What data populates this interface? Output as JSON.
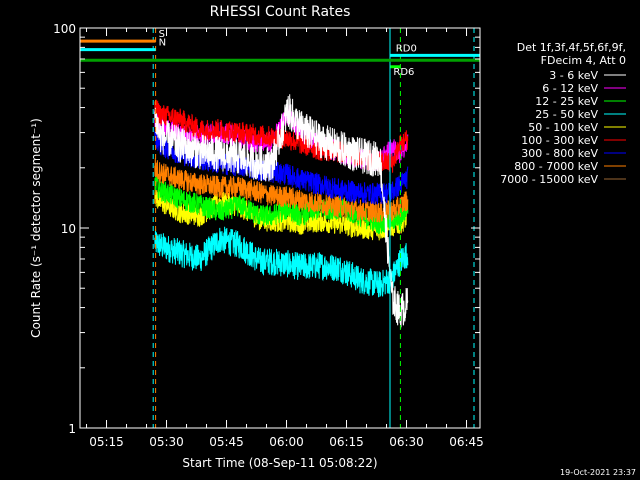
{
  "chart_data": {
    "type": "line",
    "title": "RHESSI Count Rates",
    "xlabel": "Start Time (08-Sep-11 05:08:22)",
    "ylabel": "Count Rate (s⁻¹ detector segment⁻¹)",
    "yscale": "log",
    "ylim": [
      1,
      100
    ],
    "xlim_minutes": [
      0,
      100
    ],
    "x_tick_labels": [
      "05:15",
      "05:30",
      "05:45",
      "06:00",
      "06:15",
      "06:30",
      "06:45"
    ],
    "x_tick_minutes": [
      6.63,
      21.63,
      36.63,
      51.63,
      66.63,
      81.63,
      96.63
    ],
    "y_tick_labels": [
      "1",
      "10",
      "100"
    ],
    "y_tick_values": [
      1,
      10,
      100
    ],
    "grid": false,
    "legend_position": "right",
    "legend_header": [
      "Det 1f,3f,4f,5f,6f,9f,",
      "FDecim 4, Att 0"
    ],
    "series": [
      {
        "name": "3 - 6 keV",
        "color": "#ffffff",
        "x": [
          18.7,
          20,
          25,
          30,
          35,
          40,
          45,
          48,
          52,
          55,
          60,
          65,
          70,
          75,
          78,
          80,
          82
        ],
        "y": [
          36,
          29,
          26,
          24,
          23.5,
          22.5,
          21,
          21,
          39,
          32,
          27.5,
          25,
          23,
          22,
          4.5,
          3.8,
          4.2
        ]
      },
      {
        "name": "6 - 12 keV",
        "color": "#ff00ff",
        "x": [
          18.7,
          20,
          25,
          30,
          35,
          40,
          45,
          48,
          52,
          55,
          60,
          65,
          70,
          75,
          78,
          80,
          82
        ],
        "y": [
          36,
          33,
          29,
          29,
          30,
          28.5,
          26,
          27,
          37,
          30,
          26,
          24,
          22,
          21.5,
          25,
          24,
          26
        ]
      },
      {
        "name": "12 - 25 keV",
        "color": "#00ff00",
        "x": [
          18.7,
          20,
          25,
          30,
          35,
          40,
          45,
          48,
          52,
          55,
          60,
          65,
          70,
          75,
          78,
          80,
          82
        ],
        "y": [
          17,
          15.5,
          14,
          13,
          12,
          13,
          11.5,
          11.5,
          12.5,
          11.5,
          12.5,
          12.5,
          11.5,
          10.5,
          11,
          11,
          13
        ]
      },
      {
        "name": "25 - 50 keV",
        "color": "#00ffff",
        "x": [
          18.7,
          20,
          25,
          30,
          35,
          40,
          45,
          48,
          52,
          55,
          60,
          65,
          70,
          75,
          78,
          80,
          82
        ],
        "y": [
          8.5,
          8.2,
          7.5,
          7,
          8.8,
          8.2,
          6.8,
          6.8,
          6.6,
          6.4,
          6.5,
          6.3,
          5.5,
          5.2,
          5.6,
          6.8,
          7.5
        ]
      },
      {
        "name": "50 - 100 keV",
        "color": "#ffff00",
        "x": [
          18.7,
          20,
          25,
          30,
          35,
          40,
          45,
          48,
          52,
          55,
          60,
          65,
          70,
          75,
          78,
          80,
          82
        ],
        "y": [
          14.5,
          13.5,
          12,
          11.5,
          13.5,
          12.8,
          11,
          10.8,
          10.8,
          10.5,
          10.8,
          10.5,
          10,
          9.8,
          10.2,
          10.5,
          11.5
        ]
      },
      {
        "name": "100 - 300 keV",
        "color": "#ff0000",
        "x": [
          18.7,
          20,
          25,
          30,
          35,
          40,
          45,
          48,
          52,
          55,
          60,
          65,
          70,
          75,
          78,
          80,
          82
        ],
        "y": [
          40,
          37,
          35,
          31,
          31,
          30,
          29,
          28.5,
          28,
          26.5,
          24.5,
          24,
          22.5,
          21.5,
          21,
          26,
          28
        ]
      },
      {
        "name": "300 - 800 keV",
        "color": "#0000ff",
        "x": [
          18.7,
          20,
          25,
          30,
          35,
          40,
          45,
          48,
          52,
          55,
          60,
          65,
          70,
          75,
          78,
          80,
          82
        ],
        "y": [
          29,
          26,
          23.5,
          22,
          21,
          20.5,
          19.5,
          19,
          18.5,
          17.5,
          16.5,
          15.5,
          15,
          14.8,
          15.2,
          16.5,
          18
        ]
      },
      {
        "name": "800 - 7000 keV",
        "color": "#ff8000",
        "x": [
          18.7,
          20,
          25,
          30,
          35,
          40,
          45,
          48,
          52,
          55,
          60,
          65,
          70,
          75,
          78,
          80,
          82
        ],
        "y": [
          20,
          19,
          17.5,
          16.5,
          16,
          16,
          15,
          14.5,
          14.3,
          13.8,
          13.3,
          12.8,
          12.3,
          12,
          12.2,
          12.8,
          14
        ]
      },
      {
        "name": "7000 - 15000 keV",
        "color": "#996633",
        "x": [],
        "y": []
      }
    ],
    "vertical_lines_minutes": [
      {
        "x": 0,
        "color": "#00ffff",
        "style": "solid"
      },
      {
        "x": 18.3,
        "color": "#00ffff",
        "style": "dashed"
      },
      {
        "x": 18.9,
        "color": "#ff8000",
        "style": "dashed"
      },
      {
        "x": 77.5,
        "color": "#00ffff",
        "style": "solid"
      },
      {
        "x": 80.1,
        "color": "#00ff00",
        "style": "dashed"
      },
      {
        "x": 98.5,
        "color": "#00ffff",
        "style": "dashed"
      }
    ],
    "annotations": [
      {
        "text": "S",
        "color": "#ff8000",
        "x": 18.9,
        "y": 86,
        "bar_from": 0,
        "bar_to": 18.9
      },
      {
        "text": "N",
        "color": "#00ffff",
        "x": 18.9,
        "y": 78,
        "bar_from": 0,
        "bar_to": 18.9
      },
      {
        "text": "RD6",
        "color": "#00ff00",
        "x": 77.6,
        "y": 64,
        "bar_from": 77.6,
        "bar_to": 80.1
      },
      {
        "text": "RD0",
        "color": "#00ffff",
        "x": 78.2,
        "y": 73,
        "bar_from": 77.6,
        "bar_to": 100
      }
    ],
    "saa_bar": {
      "color": "#00a000",
      "y": 69,
      "from": 0,
      "to": 100
    }
  },
  "footer": {
    "date": "19-Oct-2021 23:37"
  }
}
